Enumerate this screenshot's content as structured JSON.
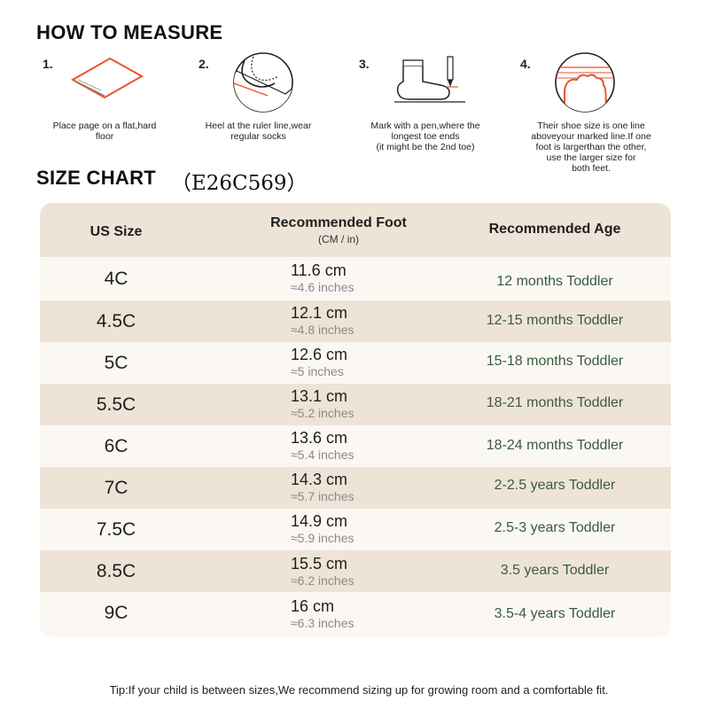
{
  "how_to": {
    "title": "HOW TO MEASURE",
    "steps": [
      {
        "num": "1.",
        "text": "Place page on a flat,hard\nfloor",
        "icon": "paper-on-floor-icon"
      },
      {
        "num": "2.",
        "text": "Heel at the ruler line,wear\nregular socks",
        "icon": "heel-on-ruler-icon"
      },
      {
        "num": "3.",
        "text": "Mark with a pen,where the\nlongest toe ends\n(it might be the 2nd toe)",
        "icon": "sock-and-pen-icon"
      },
      {
        "num": "4.",
        "text": "Their shoe size is one line\naboveyour marked line.If one\nfoot is largerthan the other,\nuse the larger size for\nboth feet.",
        "icon": "toe-on-lines-icon"
      }
    ],
    "accent_color": "#e8552a"
  },
  "size_chart": {
    "title": "SIZE CHART",
    "code": "（E26C569）",
    "headers": {
      "size": "US Size",
      "foot": "Recommended Foot",
      "foot_sub": "(CM / in)",
      "age": "Recommended Age"
    },
    "rows": [
      {
        "size": "4C",
        "cm": "11.6 cm",
        "in": "≈4.6 inches",
        "age": "12 months Toddler"
      },
      {
        "size": "4.5C",
        "cm": "12.1 cm",
        "in": "≈4.8 inches",
        "age": "12-15 months Toddler"
      },
      {
        "size": "5C",
        "cm": "12.6 cm",
        "in": "≈5 inches",
        "age": "15-18 months Toddler"
      },
      {
        "size": "5.5C",
        "cm": "13.1 cm",
        "in": "≈5.2 inches",
        "age": "18-21 months Toddler"
      },
      {
        "size": "6C",
        "cm": "13.6 cm",
        "in": "≈5.4 inches",
        "age": "18-24 months Toddler"
      },
      {
        "size": "7C",
        "cm": "14.3 cm",
        "in": "≈5.7 inches",
        "age": "2-2.5 years Toddler"
      },
      {
        "size": "7.5C",
        "cm": "14.9 cm",
        "in": "≈5.9 inches",
        "age": "2.5-3 years Toddler"
      },
      {
        "size": "8.5C",
        "cm": "15.5 cm",
        "in": "≈6.2 inches",
        "age": "3.5 years Toddler"
      },
      {
        "size": "9C",
        "cm": "16 cm",
        "in": "≈6.3 inches",
        "age": "3.5-4 years Toddler"
      }
    ],
    "colors": {
      "header_bg": "#ede4d7",
      "row_light": "#fbf8f3",
      "age_text": "#3a5a3f"
    }
  },
  "tip": "Tip:If your child is between sizes,We recommend sizing up for growing room and a comfortable fit."
}
